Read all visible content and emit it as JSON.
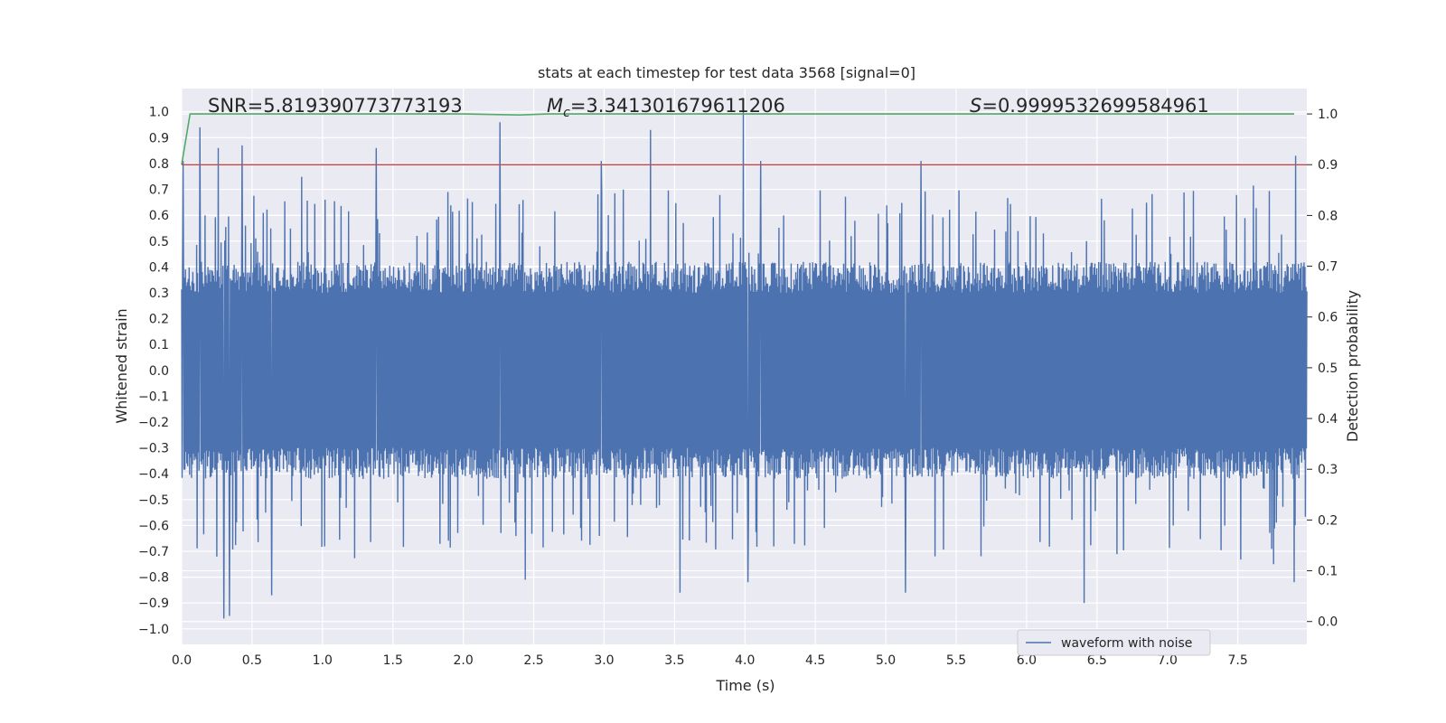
{
  "chart_data": {
    "type": "line",
    "title": "stats at each timestep for test data 3568 [signal=0]",
    "xlabel": "Time (s)",
    "ylabel_left": "Whitened strain",
    "ylabel_right": "Detection probability",
    "xlim": [
      0.0,
      7.99
    ],
    "ylim_left": [
      -1.06,
      1.09
    ],
    "ylim_right": [
      -0.045,
      1.05
    ],
    "x_ticks": [
      "0.0",
      "0.5",
      "1.0",
      "1.5",
      "2.0",
      "2.5",
      "3.0",
      "3.5",
      "4.0",
      "4.5",
      "5.0",
      "5.5",
      "6.0",
      "6.5",
      "7.0",
      "7.5"
    ],
    "y_ticks_left": [
      "1.0",
      "0.9",
      "0.8",
      "0.7",
      "0.6",
      "0.5",
      "0.4",
      "0.3",
      "0.2",
      "0.1",
      "0.0",
      "-0.1",
      "-0.2",
      "-0.3",
      "-0.4",
      "-0.5",
      "-0.6",
      "-0.7",
      "-0.8",
      "-0.9",
      "-1.0"
    ],
    "y_ticks_right": [
      "1.0",
      "0.9",
      "0.8",
      "0.7",
      "0.6",
      "0.5",
      "0.4",
      "0.3",
      "0.2",
      "0.1",
      "0.0"
    ],
    "grid": true,
    "annotations": {
      "snr": "SNR=5.819390773773193",
      "mc_symbol": "M",
      "mc_sub": "c",
      "mc_value": "=3.341301679611206",
      "s_symbol": "S",
      "s_value": "=0.9999532699584961"
    },
    "series": [
      {
        "name": "waveform with noise",
        "axis": "left",
        "color": "#4c72b0",
        "description_values": {
          "typical_envelope": [
            -0.4,
            0.4
          ]
        },
        "max_peaks": [
          {
            "x": 0.01,
            "y": 0.81
          },
          {
            "x": 0.13,
            "y": 0.94
          },
          {
            "x": 0.26,
            "y": 0.86
          },
          {
            "x": 0.43,
            "y": 0.87
          },
          {
            "x": 1.38,
            "y": 0.86
          },
          {
            "x": 2.26,
            "y": 0.96
          },
          {
            "x": 2.98,
            "y": 0.81
          },
          {
            "x": 3.33,
            "y": 0.93
          },
          {
            "x": 3.99,
            "y": 1.0
          },
          {
            "x": 4.11,
            "y": 0.81
          },
          {
            "x": 5.25,
            "y": 0.81
          },
          {
            "x": 7.91,
            "y": 0.83
          }
        ],
        "min_peaks": [
          {
            "x": 0.3,
            "y": -0.96
          },
          {
            "x": 0.34,
            "y": -0.95
          },
          {
            "x": 0.64,
            "y": -0.87
          },
          {
            "x": 2.44,
            "y": -0.81
          },
          {
            "x": 3.54,
            "y": -0.86
          },
          {
            "x": 4.02,
            "y": -0.82
          },
          {
            "x": 5.14,
            "y": -0.86
          },
          {
            "x": 6.41,
            "y": -0.9
          },
          {
            "x": 7.9,
            "y": -0.82
          }
        ]
      },
      {
        "name": "detection probability",
        "axis": "right",
        "color": "#55a868",
        "x": [
          0.0,
          0.06,
          0.2,
          2.0,
          2.4,
          2.6,
          3.0,
          7.9
        ],
        "values": [
          0.9,
          1.0,
          1.0,
          1.0,
          0.998,
          1.0,
          1.0,
          1.0
        ]
      },
      {
        "name": "threshold",
        "axis": "right",
        "color": "#c44e52",
        "x": [
          0.0,
          7.99
        ],
        "values": [
          0.9,
          0.9
        ]
      }
    ],
    "legend": {
      "placement": "bottom-right",
      "entries": [
        "waveform with noise"
      ]
    }
  }
}
